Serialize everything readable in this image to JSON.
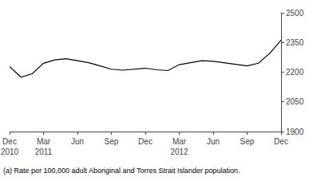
{
  "chart_data": {
    "type": "line",
    "categories": [
      "Dec\n2010",
      null,
      null,
      "Mar\n2011",
      null,
      null,
      "Jun",
      null,
      null,
      "Sep",
      null,
      null,
      "Dec",
      null,
      null,
      "Mar\n2012",
      null,
      null,
      "Jun",
      null,
      null,
      "Sep",
      null,
      null,
      "Dec"
    ],
    "values": [
      2228,
      2175,
      2192,
      2245,
      2262,
      2268,
      2258,
      2248,
      2232,
      2215,
      2210,
      2215,
      2220,
      2212,
      2208,
      2238,
      2248,
      2258,
      2255,
      2248,
      2242,
      2232,
      2245,
      2295,
      2362
    ],
    "color": "#000000",
    "ylim": [
      1900,
      2500
    ],
    "yticks": [
      1900,
      2050,
      2200,
      2350,
      2500
    ],
    "grid": false,
    "annotations": [
      "(a) Rate per 100,000 adult Aboriginal and Torres Strait Islander population."
    ]
  }
}
